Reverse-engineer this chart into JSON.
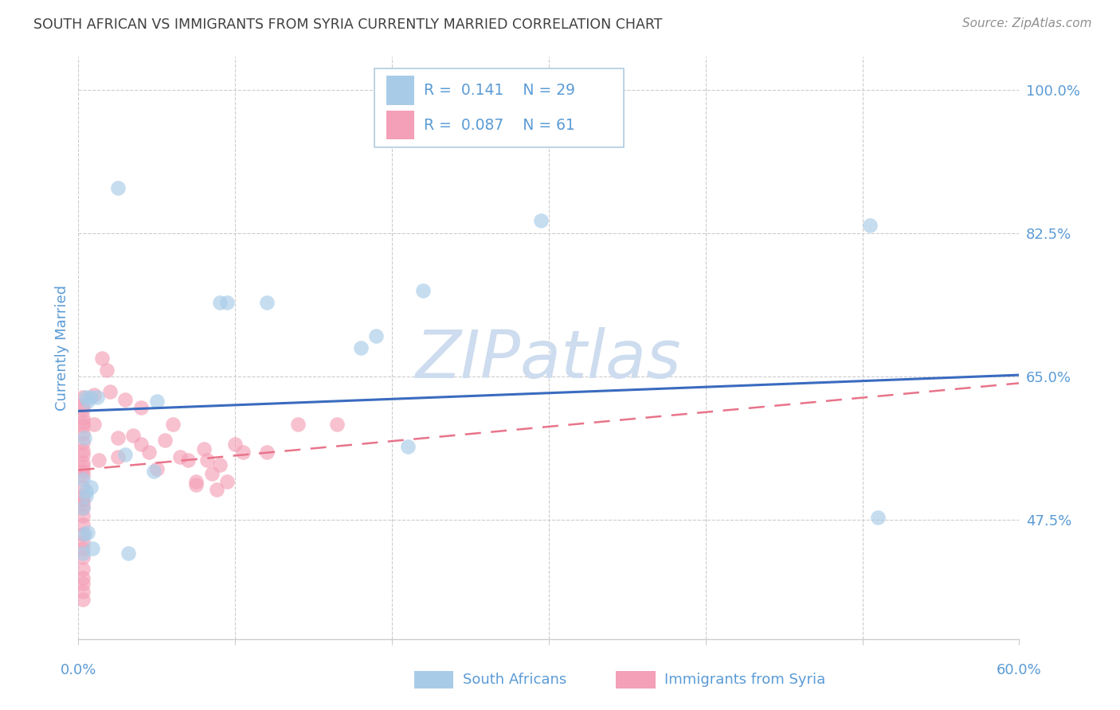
{
  "title": "SOUTH AFRICAN VS IMMIGRANTS FROM SYRIA CURRENTLY MARRIED CORRELATION CHART",
  "source": "Source: ZipAtlas.com",
  "ylabel": "Currently Married",
  "xlim": [
    0.0,
    0.6
  ],
  "ylim": [
    0.33,
    1.04
  ],
  "color_blue": "#a8cce8",
  "color_pink": "#f4a0b8",
  "color_line_blue": "#3a6bbf",
  "color_line_pink": "#e8748a",
  "color_axis_label": "#5b9bd5",
  "color_tick": "#5b9bd5",
  "color_title": "#404040",
  "color_source": "#909090",
  "color_watermark": "#cddcee",
  "color_grid": "#cccccc",
  "y_ticks": [
    0.475,
    0.65,
    0.825,
    1.0
  ],
  "y_tick_labels": [
    "47.5%",
    "65.0%",
    "82.5%",
    "100.0%"
  ],
  "x_ticks": [
    0.0,
    0.1,
    0.2,
    0.3,
    0.4,
    0.5,
    0.6
  ],
  "south_africans_x": [
    0.025,
    0.09,
    0.12,
    0.18,
    0.095,
    0.005,
    0.008,
    0.012,
    0.006,
    0.004,
    0.003,
    0.008,
    0.005,
    0.005,
    0.003,
    0.295,
    0.19,
    0.03,
    0.22,
    0.05,
    0.048,
    0.21,
    0.032,
    0.505,
    0.003,
    0.009,
    0.004,
    0.006,
    0.51
  ],
  "south_africans_y": [
    0.88,
    0.74,
    0.74,
    0.685,
    0.74,
    0.625,
    0.625,
    0.625,
    0.62,
    0.575,
    0.525,
    0.515,
    0.51,
    0.505,
    0.49,
    0.84,
    0.7,
    0.555,
    0.755,
    0.62,
    0.535,
    0.565,
    0.435,
    0.835,
    0.435,
    0.44,
    0.458,
    0.46,
    0.478
  ],
  "syria_x": [
    0.003,
    0.003,
    0.003,
    0.003,
    0.003,
    0.003,
    0.003,
    0.003,
    0.003,
    0.003,
    0.003,
    0.003,
    0.003,
    0.003,
    0.003,
    0.003,
    0.003,
    0.003,
    0.003,
    0.003,
    0.003,
    0.003,
    0.003,
    0.003,
    0.003,
    0.003,
    0.003,
    0.003,
    0.003,
    0.003,
    0.01,
    0.01,
    0.013,
    0.015,
    0.018,
    0.02,
    0.025,
    0.025,
    0.03,
    0.035,
    0.04,
    0.04,
    0.045,
    0.05,
    0.055,
    0.06,
    0.065,
    0.07,
    0.075,
    0.075,
    0.08,
    0.082,
    0.085,
    0.088,
    0.09,
    0.095,
    0.1,
    0.105,
    0.12,
    0.14,
    0.165
  ],
  "syria_y": [
    0.625,
    0.615,
    0.61,
    0.6,
    0.595,
    0.59,
    0.58,
    0.57,
    0.56,
    0.555,
    0.545,
    0.54,
    0.535,
    0.53,
    0.515,
    0.505,
    0.5,
    0.495,
    0.49,
    0.48,
    0.47,
    0.458,
    0.448,
    0.44,
    0.43,
    0.415,
    0.405,
    0.398,
    0.388,
    0.378,
    0.628,
    0.592,
    0.548,
    0.672,
    0.658,
    0.632,
    0.575,
    0.552,
    0.622,
    0.578,
    0.612,
    0.568,
    0.558,
    0.538,
    0.572,
    0.592,
    0.552,
    0.548,
    0.522,
    0.518,
    0.562,
    0.548,
    0.532,
    0.512,
    0.542,
    0.522,
    0.568,
    0.558,
    0.558,
    0.592,
    0.592
  ],
  "blue_line_x": [
    0.0,
    0.6
  ],
  "blue_line_y": [
    0.608,
    0.652
  ],
  "pink_line_x": [
    0.0,
    0.6
  ],
  "pink_line_y": [
    0.536,
    0.642
  ]
}
